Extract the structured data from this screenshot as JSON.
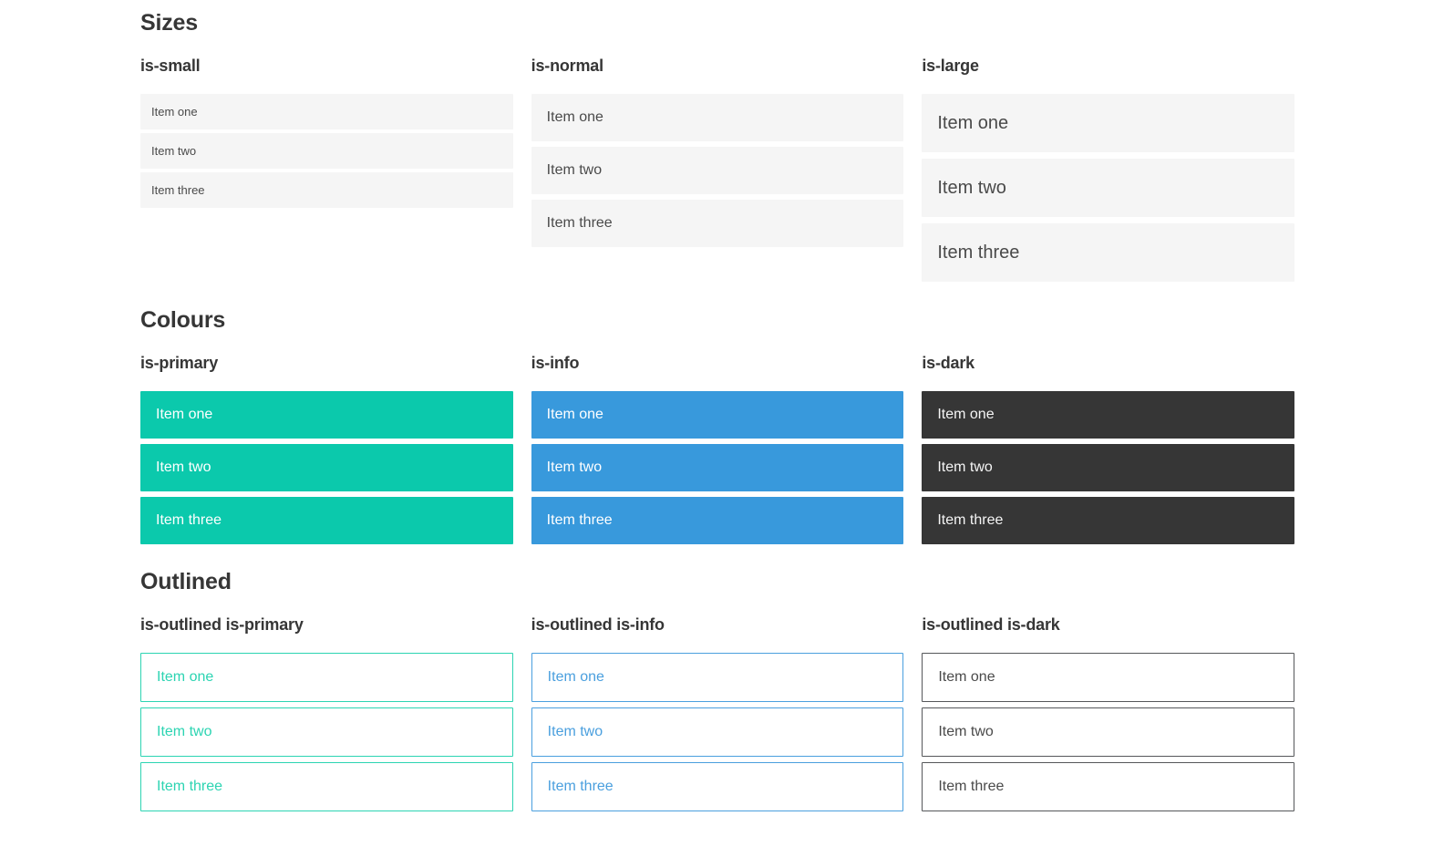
{
  "colors": {
    "primary": "#0bc9ac",
    "info": "#3899dc",
    "dark": "#363636",
    "light_item_bg": "#f5f5f5",
    "item_text": "#4a4a4a",
    "dark_item_text": "#f5f5f5",
    "heading_text": "#363636",
    "white": "#ffffff",
    "outlined_primary": "#2cd4b2",
    "outlined_info": "#4a9fde",
    "outlined_dark_border": "#55575a"
  },
  "sections": [
    {
      "title": "Sizes",
      "groups": [
        {
          "heading": "is-small",
          "items": [
            "Item one",
            "Item two",
            "Item three"
          ]
        },
        {
          "heading": "is-normal",
          "items": [
            "Item one",
            "Item two",
            "Item three"
          ]
        },
        {
          "heading": "is-large",
          "items": [
            "Item one",
            "Item two",
            "Item three"
          ]
        }
      ]
    },
    {
      "title": "Colours",
      "groups": [
        {
          "heading": "is-primary",
          "items": [
            "Item one",
            "Item two",
            "Item three"
          ]
        },
        {
          "heading": "is-info",
          "items": [
            "Item one",
            "Item two",
            "Item three"
          ]
        },
        {
          "heading": "is-dark",
          "items": [
            "Item one",
            "Item two",
            "Item three"
          ]
        }
      ]
    },
    {
      "title": "Outlined",
      "groups": [
        {
          "heading": "is-outlined is-primary",
          "items": [
            "Item one",
            "Item two",
            "Item three"
          ]
        },
        {
          "heading": "is-outlined is-info",
          "items": [
            "Item one",
            "Item two",
            "Item three"
          ]
        },
        {
          "heading": "is-outlined is-dark",
          "items": [
            "Item one",
            "Item two",
            "Item three"
          ]
        }
      ]
    }
  ]
}
